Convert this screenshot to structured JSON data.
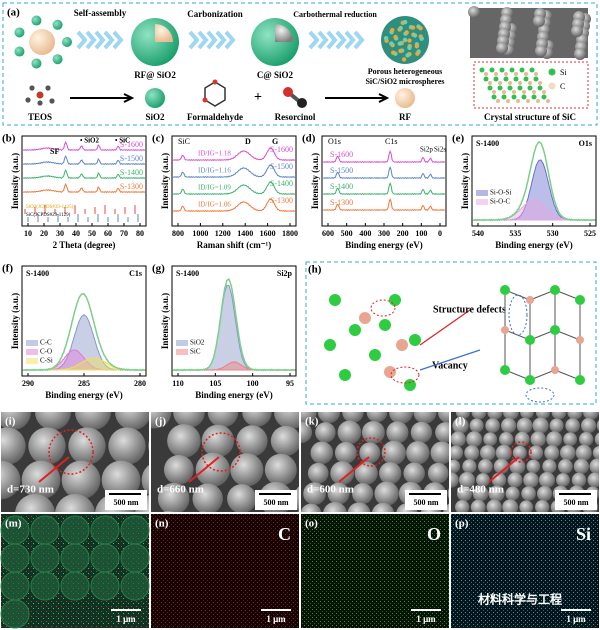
{
  "panel_a": {
    "label": "(a)",
    "steps": [
      "Self-assembly",
      "Carbonization",
      "Carbothermal reduction"
    ],
    "products": [
      "RF@ SiO2",
      "C@ SiO2"
    ],
    "porous": [
      "Porous heterogeneous",
      "SiC/SiO2 microspheres"
    ],
    "reagents": [
      "TEOS",
      "SiO2",
      "Formaldehyde",
      "+",
      "Resorcinol",
      "RF"
    ],
    "crystal_title": "Crystal structure of SiC",
    "legend": [
      "Si",
      "C"
    ]
  },
  "panel_b": {
    "label": "(b)",
    "ylabel": "Intensity (a.u.)",
    "xlabel": "2 Theta (degree)",
    "xticks": [
      "10",
      "20",
      "30",
      "40",
      "50",
      "60",
      "70",
      "80"
    ],
    "series": [
      "S-1600",
      "S-1500",
      "S-1400",
      "S-1300"
    ],
    "legend": [
      "• SiO2",
      "• SiC"
    ],
    "peak": "SF",
    "refs": [
      "SiO2(JCPDS#39-1425)",
      "SiC(JCPDS#29-1129)"
    ]
  },
  "panel_c": {
    "label": "(c)",
    "ylabel": "Intensity (a.u.)",
    "xlabel": "Raman shift (cm⁻¹)",
    "xticks": [
      "800",
      "1000",
      "1200",
      "1400",
      "1600",
      "1800"
    ],
    "series": [
      "S-1600",
      "S-1500",
      "S-1400",
      "S-1300"
    ],
    "peaks": [
      "SiC",
      "D",
      "G"
    ],
    "ratios": [
      "ID/IG=1.18",
      "ID/IG=1.16",
      "ID/IG=1.09",
      "ID/IG=1.06"
    ]
  },
  "panel_d": {
    "label": "(d)",
    "ylabel": "Intensity (a.u.)",
    "xlabel": "Binding energy (eV)",
    "xticks": [
      "600",
      "500",
      "400",
      "300",
      "200",
      "100",
      "0"
    ],
    "series": [
      "S-1600",
      "S-1500",
      "S-1400",
      "S-1300"
    ],
    "peaks": [
      "O1s",
      "C1s",
      "Si2p",
      "Si2s"
    ]
  },
  "panel_e": {
    "label": "(e)",
    "sample": "S-1400",
    "orbital": "O1s",
    "ylabel": "Intensity (a.u.)",
    "xlabel": "Binding energy (eV)",
    "xticks": [
      "540",
      "535",
      "530",
      "525"
    ],
    "legend": [
      "Si-O-Si",
      "Si-O-C"
    ]
  },
  "panel_f": {
    "label": "(f)",
    "sample": "S-1400",
    "orbital": "C1s",
    "ylabel": "Intensity (a.u.)",
    "xlabel": "Binding energy (eV)",
    "xticks": [
      "290",
      "285",
      "280"
    ],
    "legend": [
      "C-C",
      "C-O",
      "C-Si"
    ]
  },
  "panel_g": {
    "label": "(g)",
    "sample": "S-1400",
    "orbital": "Si2p",
    "ylabel": "Intensity (a.u.)",
    "xlabel": "Binding energy (eV)",
    "xticks": [
      "110",
      "105",
      "100",
      "95"
    ],
    "legend": [
      "SiO2",
      "SiC"
    ]
  },
  "panel_h": {
    "label": "(h)",
    "defects": "Structure defects",
    "vacancy": "Vacancy"
  },
  "sem": [
    {
      "label": "(i)",
      "size": "d=730 nm",
      "scale": "500 nm"
    },
    {
      "label": "(j)",
      "size": "d=660 nm",
      "scale": "500 nm"
    },
    {
      "label": "(k)",
      "size": "d=600 nm",
      "scale": "500 nm"
    },
    {
      "label": "(l)",
      "size": "d=480 nm",
      "scale": "500 nm"
    }
  ],
  "eds": [
    {
      "label": "(m)",
      "scale": "1 μm"
    },
    {
      "label": "(n)",
      "element": "C",
      "scale": "1 μm"
    },
    {
      "label": "(o)",
      "element": "O",
      "scale": "1 μm"
    },
    {
      "label": "(p)",
      "element": "Si",
      "scale": "1 μm"
    }
  ],
  "watermark": "材料科学与工程"
}
